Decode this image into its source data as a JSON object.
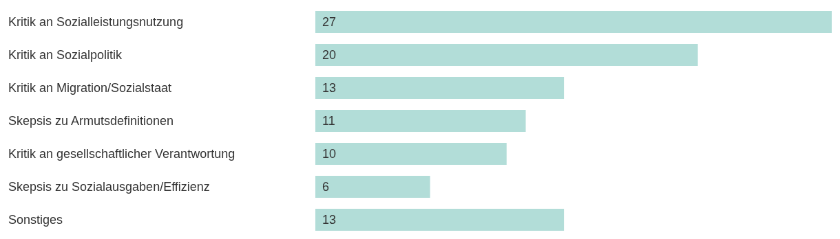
{
  "chart_data": {
    "type": "bar",
    "orientation": "horizontal",
    "tick_labels": "y",
    "categories": [
      "Kritik an Sozialleistungsnutzung",
      "Kritik an Sozialpolitik",
      "Kritik an Migration/Sozialstaat",
      "Skepsis zu Armutsdefinitionen",
      "Kritik an gesellschaftlicher Verantwortung",
      "Skepsis zu Sozialausgaben/Effizienz",
      "Sonstiges"
    ],
    "values": [
      27,
      20,
      13,
      11,
      10,
      6,
      13
    ],
    "color": "#b2ddd8",
    "data_labels": true,
    "grid": false,
    "legend": false
  }
}
